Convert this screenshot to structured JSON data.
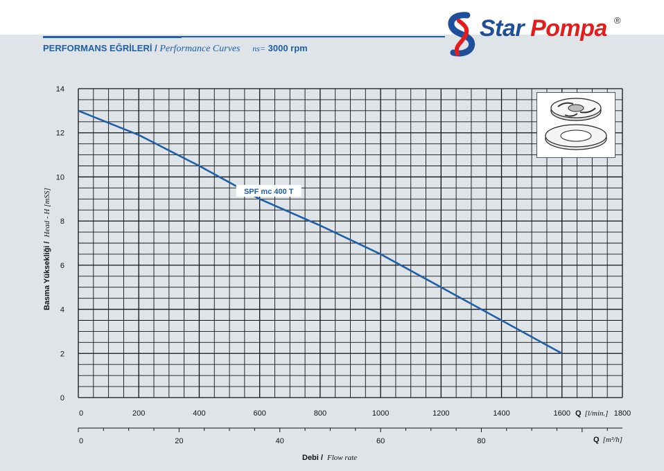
{
  "header": {
    "title_tr": "PERFORMANS EĞRİLERİ",
    "separator": "/",
    "title_en": "Performance Curves",
    "ns_label": "ns=",
    "ns_value": "3000 rpm"
  },
  "brand": {
    "name_part1": "Star",
    "name_part2": "Pompa",
    "registered": "®",
    "primary_color": "#1f4f9a",
    "accent_color": "#e31d1d"
  },
  "colors": {
    "curve": "#1f5fa8",
    "grid": "#111111"
  },
  "chart_data": {
    "type": "line",
    "grid": true,
    "y_axis": {
      "label_tr": "Basma Yüksekliği /",
      "label_en": "Head - H [mSS]",
      "range": [
        0,
        14
      ],
      "ticks": [
        0,
        2,
        4,
        6,
        8,
        10,
        12,
        14
      ]
    },
    "x_axis_primary": {
      "label_prefix": "Q",
      "label_unit": "[l/min.]",
      "range": [
        0,
        1800
      ],
      "ticks": [
        0,
        200,
        400,
        600,
        800,
        1000,
        1200,
        1400,
        1600,
        1800
      ]
    },
    "x_axis_secondary": {
      "label_prefix": "Q",
      "label_unit": "[m³/h]",
      "range": [
        0,
        108
      ],
      "ticks": [
        0,
        20,
        40,
        60,
        80
      ]
    },
    "x_axis_title_tr": "Debi /",
    "x_axis_title_en": "Flow rate",
    "series": [
      {
        "name": "SPF mc 400 T",
        "x": [
          0,
          200,
          400,
          600,
          800,
          1000,
          1200,
          1400,
          1600
        ],
        "y": [
          13.0,
          11.9,
          10.5,
          9.0,
          7.8,
          6.5,
          5.0,
          3.5,
          2.0
        ]
      }
    ]
  }
}
